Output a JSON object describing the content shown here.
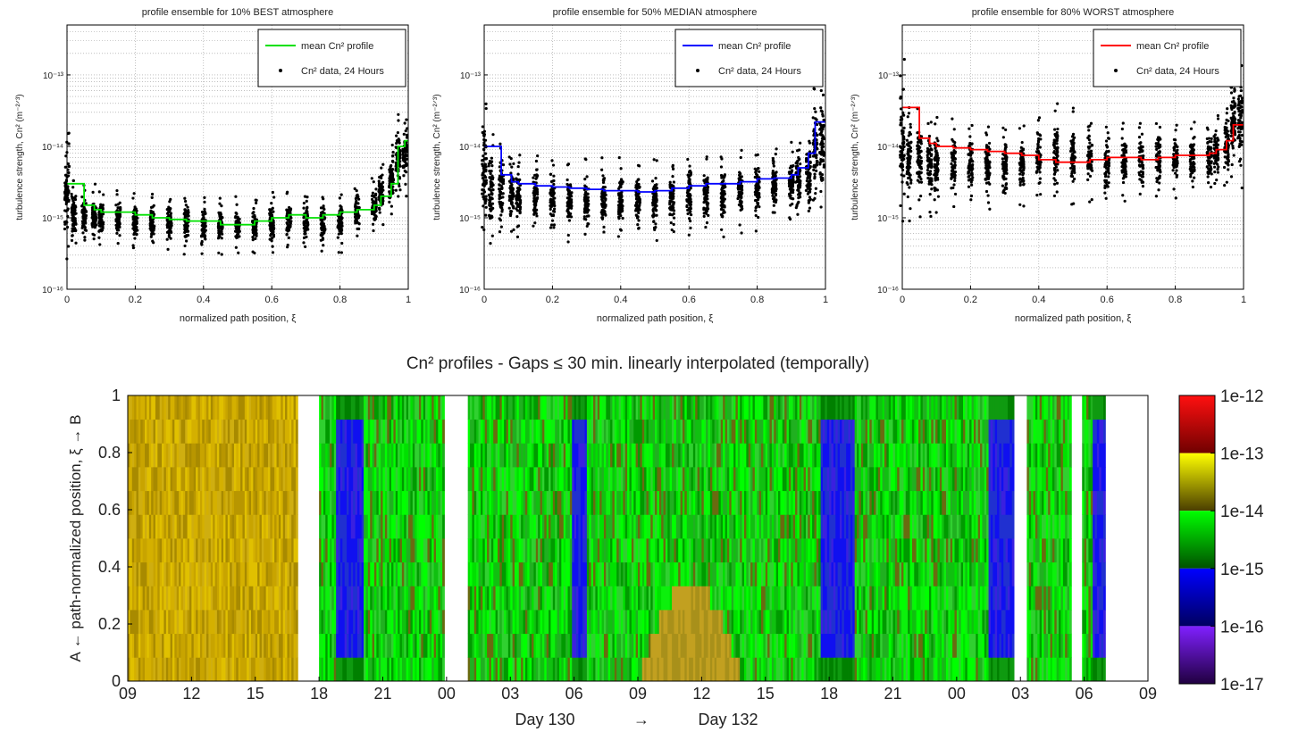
{
  "figure": {
    "day_label_left": "Day 130",
    "day_arrow": "→",
    "day_label_right": "Day 132"
  },
  "chart_data": [
    {
      "type": "line+scatter",
      "title": "profile ensemble for 10% BEST atmosphere",
      "xlabel": "normalized path position, ξ",
      "ylabel": "turbulence strength, Cn² (m⁻²ᐟ³)",
      "xlim": [
        0,
        1
      ],
      "ylim": [
        1e-16,
        5e-13
      ],
      "yscale": "log",
      "grid": true,
      "legend": [
        "mean Cn² profile",
        "Cn² data, 24 Hours"
      ],
      "legend_position": "top-right",
      "line_color": "#00e000",
      "xticks": [
        "0",
        "0.2",
        "0.4",
        "0.6",
        "0.8",
        "1"
      ],
      "yticks": [
        "10⁻¹⁶",
        "10⁻¹⁵",
        "10⁻¹⁴",
        "10⁻¹³"
      ],
      "x": [
        0,
        0.02,
        0.05,
        0.08,
        0.1,
        0.15,
        0.2,
        0.25,
        0.3,
        0.35,
        0.4,
        0.45,
        0.5,
        0.55,
        0.6,
        0.65,
        0.7,
        0.75,
        0.8,
        0.85,
        0.9,
        0.92,
        0.95,
        0.97,
        0.99
      ],
      "mean": [
        3e-15,
        3e-15,
        1.5e-15,
        1.3e-15,
        1.2e-15,
        1.2e-15,
        1.1e-15,
        1e-15,
        9.5e-16,
        9e-16,
        9e-16,
        8e-16,
        8e-16,
        9e-16,
        1e-15,
        1.1e-15,
        1e-15,
        1.1e-15,
        1.2e-15,
        1.3e-15,
        1.5e-15,
        2e-15,
        3e-15,
        1e-14,
        1.2e-14
      ],
      "data_lo": [
        2e-16,
        3e-16,
        4e-16,
        4e-16,
        4e-16,
        4e-16,
        3.5e-16,
        3.5e-16,
        3.5e-16,
        3e-16,
        3e-16,
        3e-16,
        3e-16,
        3e-16,
        3e-16,
        3.5e-16,
        3.5e-16,
        3e-16,
        3e-16,
        5e-16,
        6e-16,
        8e-16,
        1e-15,
        1.5e-15,
        2e-15
      ],
      "data_hi": [
        2.5e-14,
        4e-15,
        3e-15,
        3e-15,
        2.5e-15,
        2.5e-15,
        2.3e-15,
        2.2e-15,
        2.2e-15,
        2.2e-15,
        2e-15,
        2e-15,
        2e-15,
        2.2e-15,
        2.3e-15,
        2.5e-15,
        2.5e-15,
        2.5e-15,
        2.5e-15,
        3e-15,
        4e-15,
        6e-15,
        1.2e-14,
        3e-14,
        3e-14
      ]
    },
    {
      "type": "line+scatter",
      "title": "profile ensemble for 50% MEDIAN atmosphere",
      "xlabel": "normalized path position, ξ",
      "ylabel": "turbulence strength, Cn² (m⁻²ᐟ³)",
      "xlim": [
        0,
        1
      ],
      "ylim": [
        1e-16,
        5e-13
      ],
      "yscale": "log",
      "grid": true,
      "legend": [
        "mean Cn² profile",
        "Cn² data, 24 Hours"
      ],
      "legend_position": "top-right",
      "line_color": "#0000ff",
      "xticks": [
        "0",
        "0.2",
        "0.4",
        "0.6",
        "0.8",
        "1"
      ],
      "yticks": [
        "10⁻¹⁶",
        "10⁻¹⁵",
        "10⁻¹⁴",
        "10⁻¹³"
      ],
      "x": [
        0,
        0.02,
        0.05,
        0.08,
        0.1,
        0.15,
        0.2,
        0.25,
        0.3,
        0.35,
        0.4,
        0.45,
        0.5,
        0.55,
        0.6,
        0.65,
        0.7,
        0.75,
        0.8,
        0.85,
        0.9,
        0.92,
        0.95,
        0.97,
        0.99
      ],
      "mean": [
        1e-14,
        1e-14,
        4e-15,
        3.2e-15,
        3e-15,
        2.8e-15,
        2.7e-15,
        2.6e-15,
        2.5e-15,
        2.4e-15,
        2.4e-15,
        2.3e-15,
        2.4e-15,
        2.6e-15,
        2.8e-15,
        3e-15,
        3e-15,
        3.2e-15,
        3.5e-15,
        3.6e-15,
        4e-15,
        5e-15,
        8e-15,
        2.2e-14,
        2.2e-14
      ],
      "data_lo": [
        3e-16,
        4e-16,
        5e-16,
        5e-16,
        5e-16,
        5e-16,
        4.5e-16,
        4.5e-16,
        4.5e-16,
        4.5e-16,
        4.5e-16,
        4.5e-16,
        4.5e-16,
        4.5e-16,
        5e-16,
        5e-16,
        5e-16,
        6e-16,
        6e-16,
        7e-16,
        8e-16,
        9e-16,
        9e-16,
        1e-15,
        1e-15
      ],
      "data_hi": [
        7e-14,
        1.5e-14,
        1.2e-14,
        1e-14,
        9e-15,
        8e-15,
        8e-15,
        7.5e-15,
        7e-15,
        7e-15,
        7e-15,
        7e-15,
        7e-15,
        7.5e-15,
        8e-15,
        8e-15,
        8.5e-15,
        9e-15,
        1e-14,
        1.1e-14,
        1.2e-14,
        1.3e-14,
        1.5e-14,
        9e-14,
        9e-14
      ]
    },
    {
      "type": "line+scatter",
      "title": "profile ensemble for 80% WORST atmosphere",
      "xlabel": "normalized path position, ξ",
      "ylabel": "turbulence strength, Cn² (m⁻²ᐟ³)",
      "xlim": [
        0,
        1
      ],
      "ylim": [
        1e-16,
        5e-13
      ],
      "yscale": "log",
      "grid": true,
      "legend": [
        "mean Cn² profile",
        "Cn² data, 24 Hours"
      ],
      "legend_position": "top-right",
      "line_color": "#ff0000",
      "xticks": [
        "0",
        "0.2",
        "0.4",
        "0.6",
        "0.8",
        "1"
      ],
      "yticks": [
        "10⁻¹⁶",
        "10⁻¹⁵",
        "10⁻¹⁴",
        "10⁻¹³"
      ],
      "x": [
        0,
        0.02,
        0.05,
        0.08,
        0.1,
        0.15,
        0.2,
        0.25,
        0.3,
        0.35,
        0.4,
        0.45,
        0.5,
        0.55,
        0.6,
        0.65,
        0.7,
        0.75,
        0.8,
        0.85,
        0.9,
        0.92,
        0.95,
        0.97,
        0.99
      ],
      "mean": [
        3.5e-14,
        3.5e-14,
        1.3e-14,
        1.1e-14,
        1e-14,
        9.5e-15,
        9e-15,
        8.5e-15,
        8e-15,
        7.5e-15,
        6.5e-15,
        6e-15,
        6e-15,
        6.5e-15,
        7e-15,
        7e-15,
        6.5e-15,
        7e-15,
        7.5e-15,
        7.5e-15,
        8e-15,
        9e-15,
        1.2e-14,
        2e-14,
        2e-14
      ],
      "data_lo": [
        6e-16,
        9e-16,
        1e-15,
        1e-15,
        1.1e-15,
        1.2e-15,
        1.3e-15,
        1.3e-15,
        1.4e-15,
        1.4e-15,
        1.5e-15,
        1.5e-15,
        1.5e-15,
        1.6e-15,
        1.6e-15,
        1.6e-15,
        1.7e-15,
        1.7e-15,
        1.8e-15,
        2e-15,
        2e-15,
        2.2e-15,
        2.5e-15,
        2.5e-15,
        2.5e-15
      ],
      "data_hi": [
        1.8e-13,
        5e-14,
        4e-14,
        3e-14,
        2.8e-14,
        2.5e-14,
        2.3e-14,
        2.2e-14,
        2.1e-14,
        2.1e-14,
        3e-14,
        4e-14,
        4e-14,
        3e-14,
        2.2e-14,
        2.2e-14,
        2.1e-14,
        2.2e-14,
        2.3e-14,
        2.4e-14,
        2.5e-14,
        3e-14,
        4e-14,
        2e-13,
        2e-13
      ]
    },
    {
      "type": "heatmap",
      "title": "Cn² profiles - Gaps  ≤ 30 min. linearly interpolated (temporally)",
      "ylabel": "A ← path-normalized position,  ξ → B",
      "xlabel": "Day 130  →  Day 132",
      "x_hours_range": [
        9,
        57
      ],
      "xticks": [
        "09",
        "12",
        "15",
        "18",
        "21",
        "00",
        "03",
        "06",
        "09",
        "12",
        "15",
        "18",
        "21",
        "00",
        "03",
        "06",
        "09"
      ],
      "yticks": [
        "0",
        "0.2",
        "0.4",
        "0.6",
        "0.8",
        "1"
      ],
      "colorbar_ticks": [
        "1e-12",
        "1e-13",
        "1e-14",
        "1e-15",
        "1e-16",
        "1e-17"
      ],
      "colorbar_colors": [
        "#ff1010",
        "#ffff00",
        "#00ff00",
        "#0000ff",
        "#8020ff"
      ],
      "gaps_hours": [
        [
          17.0,
          18.0
        ],
        [
          23.9,
          25.0
        ],
        [
          50.7,
          51.3
        ],
        [
          53.4,
          53.9
        ],
        [
          55.0,
          56.0
        ]
      ],
      "segments": [
        {
          "start": 9.0,
          "end": 17.0,
          "regime": "yellow"
        },
        {
          "start": 18.0,
          "end": 18.8,
          "regime": "green"
        },
        {
          "start": 18.8,
          "end": 20.1,
          "regime": "blue"
        },
        {
          "start": 20.1,
          "end": 23.9,
          "regime": "green"
        },
        {
          "start": 25.0,
          "end": 29.9,
          "regime": "green"
        },
        {
          "start": 29.9,
          "end": 30.6,
          "regime": "blue"
        },
        {
          "start": 30.6,
          "end": 33.0,
          "regime": "green"
        },
        {
          "start": 33.0,
          "end": 38.0,
          "regime": "green-yellow-bottom"
        },
        {
          "start": 38.0,
          "end": 41.6,
          "regime": "green"
        },
        {
          "start": 41.6,
          "end": 43.2,
          "regime": "blue"
        },
        {
          "start": 43.2,
          "end": 49.5,
          "regime": "green"
        },
        {
          "start": 49.5,
          "end": 50.7,
          "regime": "blue"
        },
        {
          "start": 51.3,
          "end": 53.4,
          "regime": "green"
        },
        {
          "start": 53.9,
          "end": 54.4,
          "regime": "green"
        },
        {
          "start": 54.4,
          "end": 55.0,
          "regime": "blue"
        },
        {
          "start": 56.0,
          "end": 57.0,
          "regime": "white"
        }
      ]
    }
  ]
}
